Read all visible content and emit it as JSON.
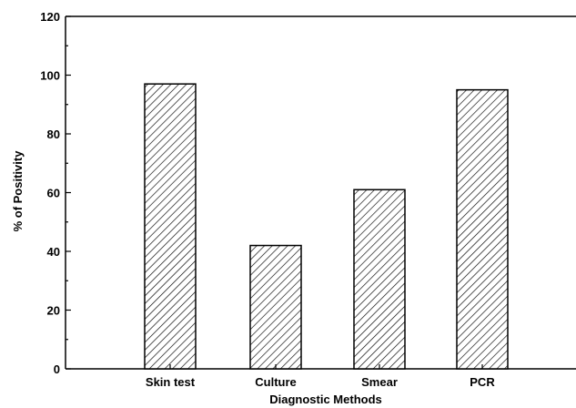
{
  "chart_data": {
    "type": "bar",
    "title": "",
    "xlabel": "Diagnostic Methods",
    "ylabel": "% of Positivity",
    "categories": [
      "Skin test",
      "Culture",
      "Smear",
      "PCR"
    ],
    "values": [
      97,
      42,
      61,
      95
    ],
    "ylim": [
      0,
      120
    ],
    "yticks": [
      0,
      20,
      40,
      60,
      80,
      100,
      120
    ],
    "ytick_labels": [
      "0",
      "20",
      "40",
      "60",
      "80",
      "100",
      "120"
    ],
    "grid": false,
    "legend": "none",
    "bar_pattern": "diagonal-hatch",
    "colors": {
      "bar_stroke": "#000000",
      "hatch": "#000000",
      "background": "#ffffff"
    }
  }
}
